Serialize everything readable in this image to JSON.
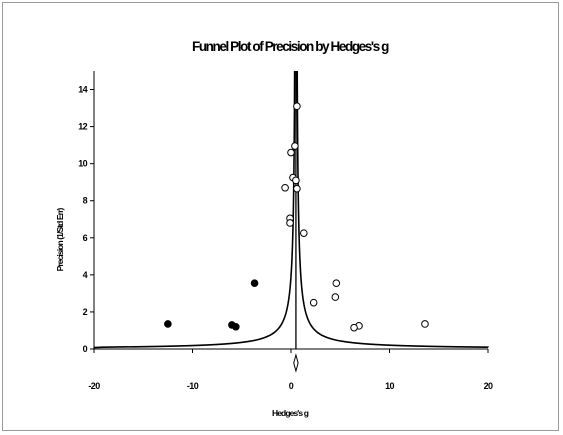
{
  "chart_data": {
    "type": "scatter",
    "title": "Funnel Plot of Precision by Hedges's g",
    "xlabel": "Hedges's g",
    "ylabel": "Precision (1/Std Err)",
    "xlim": [
      -20,
      20
    ],
    "ylim": [
      0,
      15
    ],
    "xticks": [
      "-20",
      "-10",
      "0",
      "10",
      "20"
    ],
    "yticks": [
      "0",
      "2",
      "4",
      "6",
      "8",
      "10",
      "12",
      "14"
    ],
    "grid": false,
    "legend": "none",
    "combined_effect": 0.5,
    "series": [
      {
        "marker": "open-circle",
        "points": [
          {
            "x": 0.6,
            "y": 13.1
          },
          {
            "x": 0.4,
            "y": 10.95
          },
          {
            "x": 0.0,
            "y": 10.6
          },
          {
            "x": 0.2,
            "y": 9.25
          },
          {
            "x": 0.5,
            "y": 9.1
          },
          {
            "x": -0.6,
            "y": 8.7
          },
          {
            "x": 0.6,
            "y": 8.65
          },
          {
            "x": -0.1,
            "y": 7.05
          },
          {
            "x": -0.1,
            "y": 6.8
          },
          {
            "x": 1.3,
            "y": 6.25
          },
          {
            "x": 4.6,
            "y": 3.55
          },
          {
            "x": 4.5,
            "y": 2.8
          },
          {
            "x": 2.3,
            "y": 2.5
          },
          {
            "x": 13.6,
            "y": 1.35
          },
          {
            "x": 6.9,
            "y": 1.25
          },
          {
            "x": 6.4,
            "y": 1.15
          }
        ]
      },
      {
        "marker": "filled-circle",
        "points": [
          {
            "x": -3.7,
            "y": 3.55
          },
          {
            "x": -12.5,
            "y": 1.35
          },
          {
            "x": -6.0,
            "y": 1.3
          },
          {
            "x": -5.6,
            "y": 1.2
          }
        ]
      }
    ],
    "colors": {
      "marker_edge": "#000000",
      "open_fill": "#ffffff",
      "filled_fill": "#000000",
      "axis": "#000000",
      "border": "#9a9a9a"
    }
  }
}
